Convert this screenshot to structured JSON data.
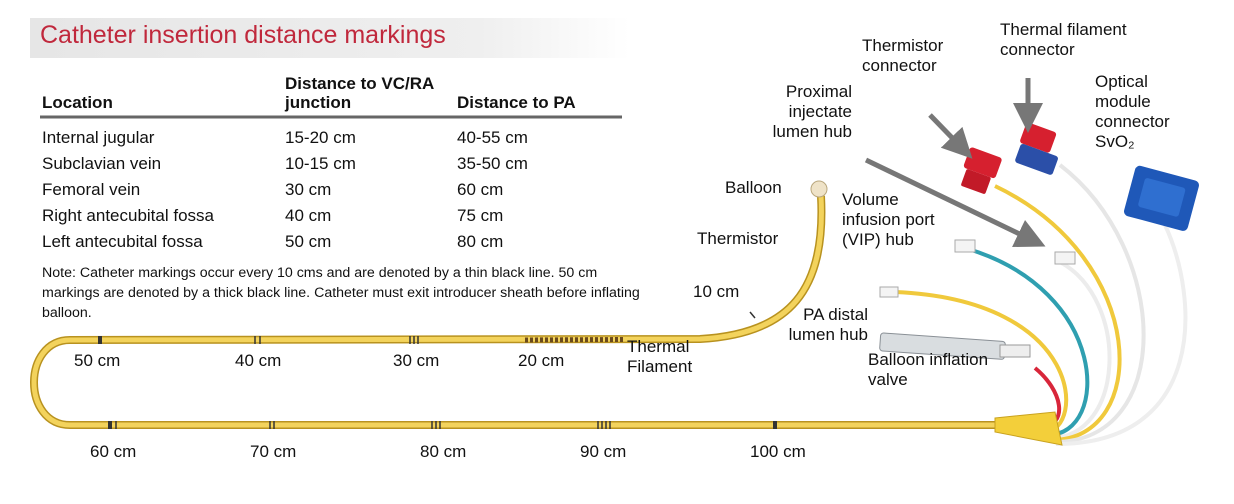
{
  "header": {
    "title": "Catheter insertion distance markings"
  },
  "table": {
    "columns": [
      "Location",
      "Distance to VC/RA junction",
      "Distance to PA"
    ],
    "rows": [
      [
        "Internal jugular",
        "15-20 cm",
        "40-55 cm"
      ],
      [
        "Subclavian vein",
        "10-15 cm",
        "35-50 cm"
      ],
      [
        "Femoral vein",
        "30 cm",
        "60 cm"
      ],
      [
        "Right antecubital fossa",
        "40 cm",
        "75 cm"
      ],
      [
        "Left antecubital fossa",
        "50 cm",
        "80 cm"
      ]
    ]
  },
  "note": "Note: Catheter markings occur every 10 cms and are denoted by a thin black line. 50 cm markings are denoted by a thick black line. Catheter must exit introducer sheath before inflating balloon.",
  "markings": [
    "10 cm",
    "20 cm",
    "30 cm",
    "40 cm",
    "50 cm",
    "60 cm",
    "70 cm",
    "80 cm",
    "90 cm",
    "100 cm"
  ],
  "parts": [
    "Balloon",
    "Thermistor",
    "Thermal Filament",
    "PA distal lumen hub",
    "Balloon inflation valve",
    "Volume infusion port (VIP) hub",
    "Proximal injectate lumen hub",
    "Thermistor connector",
    "Thermal filament connector",
    "Optical module connector SvO₂"
  ]
}
